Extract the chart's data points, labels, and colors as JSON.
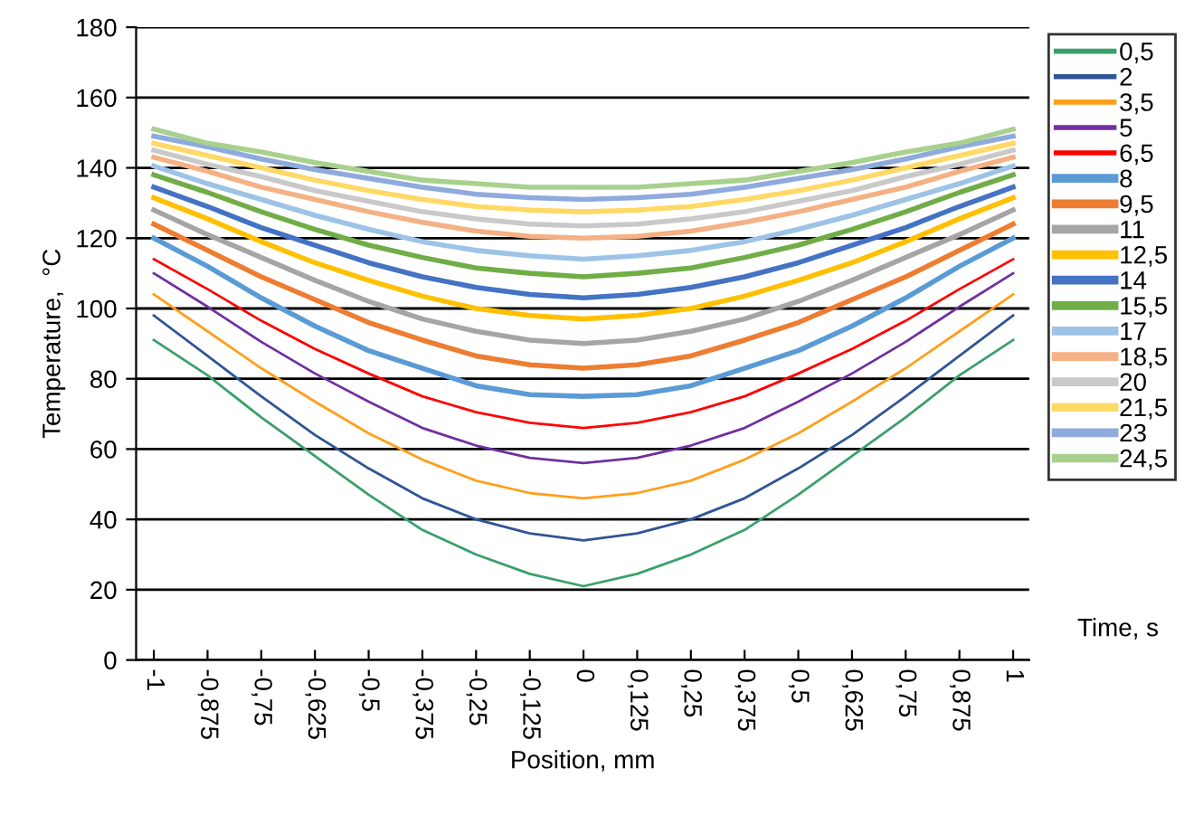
{
  "chart_data": {
    "type": "line",
    "xlabel": "Position, mm",
    "ylabel": "Temperature,  °C",
    "legend_title": "Time, s",
    "categories": [
      "-1",
      "-0,875",
      "-0,75",
      "-0,625",
      "-0,5",
      "-0,375",
      "-0,25",
      "-0,125",
      "0",
      "0,125",
      "0,25",
      "0,375",
      "0,5",
      "0,625",
      "0,75",
      "0,875",
      "1"
    ],
    "ylim": [
      0,
      180
    ],
    "yticks": [
      0,
      20,
      40,
      60,
      80,
      100,
      120,
      140,
      160,
      180
    ],
    "grid": "y",
    "legend": "right",
    "marker": "none",
    "line_style": "solid",
    "series": [
      {
        "name": "0,5",
        "color": "#3aa06a",
        "values": [
          91,
          81,
          69,
          58,
          47,
          37,
          30,
          24.5,
          21,
          24.5,
          30,
          37,
          47,
          58,
          69,
          81,
          91
        ]
      },
      {
        "name": "2",
        "color": "#2f5597",
        "values": [
          98,
          86.5,
          75,
          64,
          54.5,
          46,
          40,
          36,
          34,
          36,
          40,
          46,
          54.5,
          64,
          75,
          86.5,
          98
        ]
      },
      {
        "name": "3,5",
        "color": "#ff9f1c",
        "values": [
          104,
          93.5,
          83,
          73.5,
          64.5,
          57,
          51,
          47.5,
          46,
          47.5,
          51,
          57,
          64.5,
          73.5,
          83,
          93.5,
          104
        ]
      },
      {
        "name": "5",
        "color": "#7030a0",
        "values": [
          110,
          100.5,
          90.5,
          81.5,
          73.5,
          66,
          61,
          57.5,
          56,
          57.5,
          61,
          66,
          73.5,
          81.5,
          90.5,
          100.5,
          110
        ]
      },
      {
        "name": "6,5",
        "color": "#ff0000",
        "values": [
          114,
          105.5,
          96.5,
          88.5,
          81.5,
          75,
          70.5,
          67.5,
          66,
          67.5,
          70.5,
          75,
          81.5,
          88.5,
          96.5,
          105.5,
          114
        ]
      },
      {
        "name": "8",
        "color": "#5b9bd5",
        "values": [
          120,
          112,
          103,
          95,
          88,
          83,
          78,
          75.5,
          75,
          75.5,
          78,
          83,
          88,
          95,
          103,
          112,
          120
        ]
      },
      {
        "name": "9,5",
        "color": "#ed7d31",
        "values": [
          124,
          116.5,
          109,
          102.5,
          96,
          91,
          86.5,
          84,
          83,
          84,
          86.5,
          91,
          96,
          102.5,
          109,
          116.5,
          124
        ]
      },
      {
        "name": "11",
        "color": "#a5a5a5",
        "values": [
          128,
          121,
          114.5,
          108,
          102,
          97,
          93.5,
          91,
          90,
          91,
          93.5,
          97,
          102,
          108,
          114.5,
          121,
          128
        ]
      },
      {
        "name": "12,5",
        "color": "#ffc000",
        "values": [
          131.5,
          125.5,
          119,
          113,
          108,
          103.5,
          100,
          98,
          97,
          98,
          100,
          103.5,
          108,
          113,
          119,
          125.5,
          131.5
        ]
      },
      {
        "name": "14",
        "color": "#4472c4",
        "values": [
          134.5,
          129,
          123,
          118,
          113,
          109,
          106,
          104,
          103,
          104,
          106,
          109,
          113,
          118,
          123,
          129,
          134.5
        ]
      },
      {
        "name": "15,5",
        "color": "#70ad47",
        "values": [
          138,
          133,
          127.5,
          122.5,
          118,
          114.5,
          111.5,
          110,
          109,
          110,
          111.5,
          114.5,
          118,
          122.5,
          127.5,
          133,
          138
        ]
      },
      {
        "name": "17",
        "color": "#9dc3e6",
        "values": [
          140.5,
          135.5,
          131,
          126.5,
          122.5,
          119,
          116.5,
          115,
          114,
          115,
          116.5,
          119,
          122.5,
          126.5,
          131,
          135.5,
          140.5
        ]
      },
      {
        "name": "18,5",
        "color": "#f4b183",
        "values": [
          143,
          139,
          134.5,
          131,
          127.5,
          124.5,
          122,
          120.5,
          120,
          120.5,
          122,
          124.5,
          127.5,
          131,
          134.5,
          139,
          143
        ]
      },
      {
        "name": "20",
        "color": "#c9c9c9",
        "values": [
          145,
          141,
          137.5,
          133.5,
          130.5,
          127.5,
          125.5,
          124,
          123.5,
          124,
          125.5,
          127.5,
          130.5,
          133.5,
          137.5,
          141,
          145
        ]
      },
      {
        "name": "21,5",
        "color": "#ffd966",
        "values": [
          147,
          143.5,
          140,
          136.5,
          133.5,
          131,
          129,
          128,
          127.5,
          128,
          129,
          131,
          133.5,
          136.5,
          140,
          143.5,
          147
        ]
      },
      {
        "name": "23",
        "color": "#8faadc",
        "values": [
          149,
          146,
          142.5,
          139.5,
          137,
          134.5,
          132.5,
          131.5,
          131,
          131.5,
          132.5,
          134.5,
          137,
          139.5,
          142.5,
          146,
          149
        ]
      },
      {
        "name": "24,5",
        "color": "#a9d18e",
        "values": [
          151,
          147,
          144.5,
          141.5,
          139,
          136.5,
          135.5,
          134.5,
          134.5,
          134.5,
          135.5,
          136.5,
          139,
          141.5,
          144.5,
          147,
          151
        ]
      }
    ]
  }
}
